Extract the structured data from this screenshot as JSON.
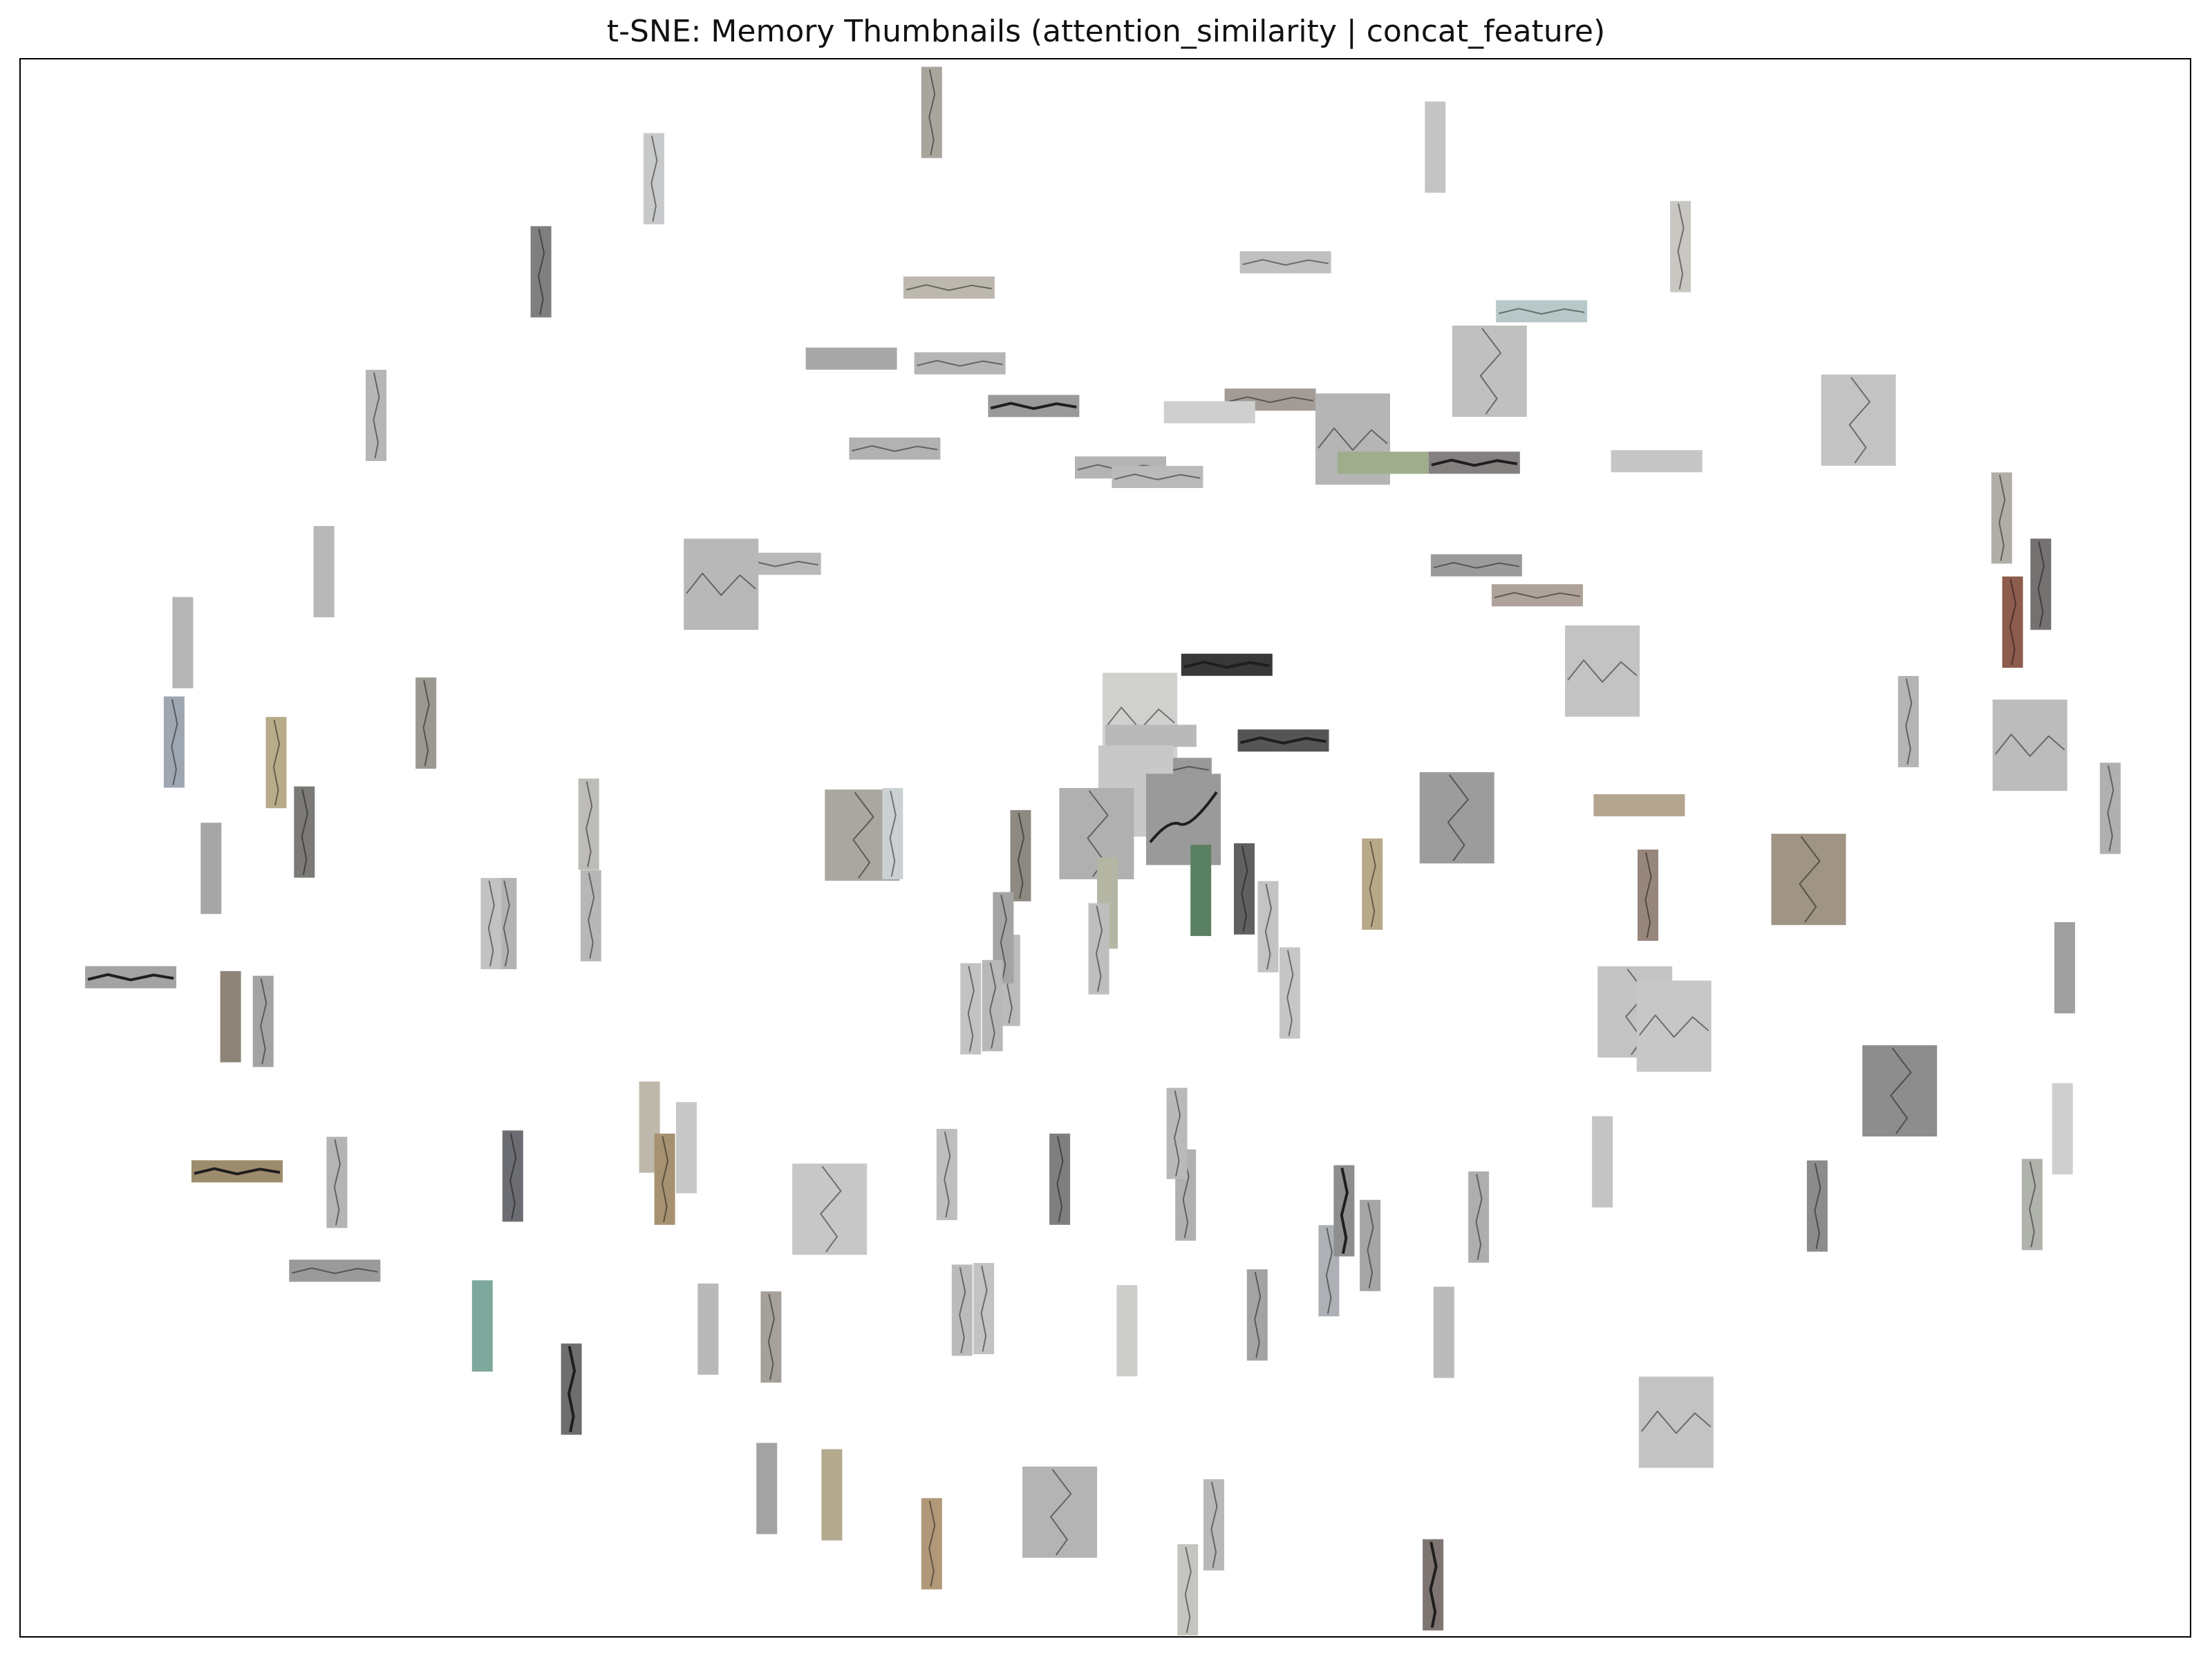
{
  "chart_data": {
    "type": "scatter",
    "title": "t-SNE: Memory Thumbnails (attention_similarity | concat_feature)",
    "xlabel": "",
    "ylabel": "",
    "axes_ticks": false,
    "grid": false,
    "legend": "none",
    "marker": "image-thumbnail",
    "xlim": [
      0,
      1000
    ],
    "ylim": [
      0,
      1000
    ],
    "points": [
      {
        "x": 420,
        "y": 966,
        "o": "v",
        "c": "#a9a59c",
        "crack": "v"
      },
      {
        "x": 292,
        "y": 924,
        "o": "v",
        "c": "#c8c9ca",
        "crack": "v"
      },
      {
        "x": 652,
        "y": 944,
        "o": "v",
        "c": "#c4c4c4",
        "crack": "none"
      },
      {
        "x": 240,
        "y": 865,
        "o": "v",
        "c": "#7f7f7f",
        "crack": "v"
      },
      {
        "x": 765,
        "y": 881,
        "o": "v",
        "c": "#c9c7c2",
        "crack": "v"
      },
      {
        "x": 583,
        "y": 871,
        "o": "h",
        "c": "#c0c0c0",
        "crack": "h"
      },
      {
        "x": 428,
        "y": 855,
        "o": "h",
        "c": "#bdb8ae",
        "crack": "h"
      },
      {
        "x": 677,
        "y": 802,
        "o": "b",
        "c": "#bfc0bf",
        "crack": "v"
      },
      {
        "x": 701,
        "y": 840,
        "o": "h",
        "c": "#b8c8c8",
        "crack": "h"
      },
      {
        "x": 164,
        "y": 774,
        "o": "v",
        "c": "#b6b6b6",
        "crack": "v"
      },
      {
        "x": 383,
        "y": 810,
        "o": "h",
        "c": "#a8a8a8",
        "crack": "none"
      },
      {
        "x": 433,
        "y": 807,
        "o": "h",
        "c": "#b5b5b5",
        "crack": "h"
      },
      {
        "x": 467,
        "y": 780,
        "o": "h",
        "c": "#9a9a9a",
        "crack": "h-dark"
      },
      {
        "x": 576,
        "y": 784,
        "o": "h",
        "c": "#a39b96",
        "crack": "h"
      },
      {
        "x": 548,
        "y": 776,
        "o": "h",
        "c": "#cfcfcf",
        "crack": "none"
      },
      {
        "x": 847,
        "y": 771,
        "o": "b",
        "c": "#c3c3c3",
        "crack": "v"
      },
      {
        "x": 403,
        "y": 753,
        "o": "h",
        "c": "#b2b2b2",
        "crack": "h"
      },
      {
        "x": 614,
        "y": 759,
        "o": "b",
        "c": "#b5b5b5",
        "crack": "h"
      },
      {
        "x": 628,
        "y": 744,
        "o": "h",
        "c": "#9fad8d",
        "crack": "none"
      },
      {
        "x": 670,
        "y": 744,
        "o": "h",
        "c": "#848080",
        "crack": "h-dark"
      },
      {
        "x": 754,
        "y": 745,
        "o": "h",
        "c": "#c6c6c6",
        "crack": "none"
      },
      {
        "x": 507,
        "y": 741,
        "o": "h",
        "c": "#b4b4b4",
        "crack": "h"
      },
      {
        "x": 524,
        "y": 735,
        "o": "h",
        "c": "#bababa",
        "crack": "h"
      },
      {
        "x": 140,
        "y": 675,
        "o": "v",
        "c": "#b8b8b8",
        "crack": "none"
      },
      {
        "x": 75,
        "y": 630,
        "o": "v",
        "c": "#b6b6b6",
        "crack": "none"
      },
      {
        "x": 913,
        "y": 709,
        "o": "v",
        "c": "#b1aea8",
        "crack": "v"
      },
      {
        "x": 931,
        "y": 667,
        "o": "v",
        "c": "#757170",
        "crack": "v"
      },
      {
        "x": 918,
        "y": 643,
        "o": "v",
        "c": "#8c5c4c",
        "crack": "v"
      },
      {
        "x": 348,
        "y": 680,
        "o": "h",
        "c": "#b9b9b9",
        "crack": "h"
      },
      {
        "x": 323,
        "y": 667,
        "o": "b",
        "c": "#b8b8b8",
        "crack": "h"
      },
      {
        "x": 671,
        "y": 679,
        "o": "h",
        "c": "#9b9b9b",
        "crack": "h"
      },
      {
        "x": 699,
        "y": 660,
        "o": "h",
        "c": "#aea29a",
        "crack": "h"
      },
      {
        "x": 556,
        "y": 616,
        "o": "h",
        "c": "#383838",
        "crack": "h-dark"
      },
      {
        "x": 729,
        "y": 612,
        "o": "b",
        "c": "#c3c3c3",
        "crack": "h"
      },
      {
        "x": 71,
        "y": 567,
        "o": "v",
        "c": "#9ea6b1",
        "crack": "v"
      },
      {
        "x": 118,
        "y": 554,
        "o": "v",
        "c": "#b8ab8a",
        "crack": "v"
      },
      {
        "x": 187,
        "y": 579,
        "o": "v",
        "c": "#9b9791",
        "crack": "v"
      },
      {
        "x": 870,
        "y": 580,
        "o": "v",
        "c": "#b4b4b4",
        "crack": "v"
      },
      {
        "x": 131,
        "y": 510,
        "o": "v",
        "c": "#7c7a77",
        "crack": "v"
      },
      {
        "x": 516,
        "y": 582,
        "o": "b",
        "c": "#d0d0ce",
        "crack": "h"
      },
      {
        "x": 528,
        "y": 550,
        "o": "h",
        "c": "#9a9898",
        "crack": "h"
      },
      {
        "x": 521,
        "y": 571,
        "o": "h",
        "c": "#b9b9b9",
        "crack": "none"
      },
      {
        "x": 514,
        "y": 536,
        "o": "b",
        "c": "#c8c8c8",
        "crack": "none"
      },
      {
        "x": 536,
        "y": 518,
        "o": "b",
        "c": "#9a9a9a",
        "crack": "h-curvy"
      },
      {
        "x": 496,
        "y": 509,
        "o": "b",
        "c": "#b0b0b0",
        "crack": "v"
      },
      {
        "x": 582,
        "y": 568,
        "o": "h",
        "c": "#565454",
        "crack": "h-dark"
      },
      {
        "x": 926,
        "y": 565,
        "o": "b",
        "c": "#bcbcbc",
        "crack": "h"
      },
      {
        "x": 963,
        "y": 525,
        "o": "v",
        "c": "#b0b0b0",
        "crack": "v"
      },
      {
        "x": 746,
        "y": 527,
        "o": "h",
        "c": "#b4a590",
        "crack": "none"
      },
      {
        "x": 662,
        "y": 519,
        "o": "b",
        "c": "#9c9c9c",
        "crack": "v"
      },
      {
        "x": 388,
        "y": 508,
        "o": "b",
        "c": "#a9a7a0",
        "crack": "v"
      },
      {
        "x": 402,
        "y": 509,
        "o": "v",
        "c": "#cbd0d2",
        "crack": "v"
      },
      {
        "x": 262,
        "y": 515,
        "o": "v",
        "c": "#bdbcb8",
        "crack": "v"
      },
      {
        "x": 461,
        "y": 495,
        "o": "v",
        "c": "#8e8a82",
        "crack": "v"
      },
      {
        "x": 824,
        "y": 480,
        "o": "b",
        "c": "#a09585",
        "crack": "v"
      },
      {
        "x": 750,
        "y": 470,
        "o": "v",
        "c": "#97867c",
        "crack": "v"
      },
      {
        "x": 88,
        "y": 487,
        "o": "v",
        "c": "#a6a6a6",
        "crack": "none"
      },
      {
        "x": 224,
        "y": 452,
        "o": "v",
        "c": "#b3b3b3",
        "crack": "v"
      },
      {
        "x": 263,
        "y": 457,
        "o": "v",
        "c": "#b7b7b7",
        "crack": "v"
      },
      {
        "x": 501,
        "y": 465,
        "o": "v",
        "c": "#b5b5a3",
        "crack": "none"
      },
      {
        "x": 544,
        "y": 473,
        "o": "v",
        "c": "#5a8064",
        "crack": "none"
      },
      {
        "x": 564,
        "y": 474,
        "o": "v",
        "c": "#606060",
        "crack": "v"
      },
      {
        "x": 623,
        "y": 477,
        "o": "v",
        "c": "#b7a888",
        "crack": "v"
      },
      {
        "x": 575,
        "y": 450,
        "o": "v",
        "c": "#c3c3c3",
        "crack": "v"
      },
      {
        "x": 497,
        "y": 436,
        "o": "v",
        "c": "#bebebe",
        "crack": "v"
      },
      {
        "x": 585,
        "y": 408,
        "o": "v",
        "c": "#c6c6c6",
        "crack": "v"
      },
      {
        "x": 942,
        "y": 424,
        "o": "v",
        "c": "#a0a0a0",
        "crack": "none"
      },
      {
        "x": 51,
        "y": 418,
        "o": "h",
        "c": "#a3a3a3",
        "crack": "h-dark"
      },
      {
        "x": 97,
        "y": 393,
        "o": "v",
        "c": "#8f8478",
        "crack": "none"
      },
      {
        "x": 112,
        "y": 390,
        "o": "v",
        "c": "#a3a3a3",
        "crack": "v"
      },
      {
        "x": 217,
        "y": 452,
        "o": "v",
        "c": "#c2c2c2",
        "crack": "v"
      },
      {
        "x": 456,
        "y": 416,
        "o": "v",
        "c": "#bbbbbb",
        "crack": "v"
      },
      {
        "x": 453,
        "y": 443,
        "o": "v",
        "c": "#a4a4a4",
        "crack": "v"
      },
      {
        "x": 438,
        "y": 398,
        "o": "v",
        "c": "#c3c3c3",
        "crack": "v"
      },
      {
        "x": 448,
        "y": 400,
        "o": "v",
        "c": "#b8b8b8",
        "crack": "v"
      },
      {
        "x": 744,
        "y": 396,
        "o": "b",
        "c": "#c3c3c3",
        "crack": "v"
      },
      {
        "x": 762,
        "y": 387,
        "o": "b",
        "c": "#c7c7c7",
        "crack": "h"
      },
      {
        "x": 866,
        "y": 346,
        "o": "b",
        "c": "#8d8d8d",
        "crack": "v"
      },
      {
        "x": 290,
        "y": 323,
        "o": "v",
        "c": "#bdb8a9",
        "crack": "none"
      },
      {
        "x": 297,
        "y": 290,
        "o": "v",
        "c": "#a69270",
        "crack": "v"
      },
      {
        "x": 307,
        "y": 310,
        "o": "v",
        "c": "#c8c8c8",
        "crack": "none"
      },
      {
        "x": 227,
        "y": 292,
        "o": "v",
        "c": "#6c6d72",
        "crack": "v"
      },
      {
        "x": 146,
        "y": 288,
        "o": "v",
        "c": "#b4b4b4",
        "crack": "v"
      },
      {
        "x": 100,
        "y": 295,
        "o": "h",
        "c": "#9d8c6c",
        "crack": "h-dark"
      },
      {
        "x": 479,
        "y": 290,
        "o": "v",
        "c": "#7f7f7f",
        "crack": "v"
      },
      {
        "x": 427,
        "y": 293,
        "o": "v",
        "c": "#bebebe",
        "crack": "v"
      },
      {
        "x": 537,
        "y": 280,
        "o": "v",
        "c": "#b0b0b0",
        "crack": "v"
      },
      {
        "x": 533,
        "y": 319,
        "o": "v",
        "c": "#b9b9b9",
        "crack": "v"
      },
      {
        "x": 622,
        "y": 248,
        "o": "v",
        "c": "#a5a5a5",
        "crack": "v"
      },
      {
        "x": 672,
        "y": 266,
        "o": "v",
        "c": "#aeaeae",
        "crack": "v"
      },
      {
        "x": 729,
        "y": 301,
        "o": "v",
        "c": "#c4c4c4",
        "crack": "none"
      },
      {
        "x": 828,
        "y": 273,
        "o": "v",
        "c": "#8c8c8c",
        "crack": "v"
      },
      {
        "x": 927,
        "y": 274,
        "o": "v",
        "c": "#b0b2ac",
        "crack": "v"
      },
      {
        "x": 941,
        "y": 322,
        "o": "v",
        "c": "#cfcfcf",
        "crack": "none"
      },
      {
        "x": 373,
        "y": 271,
        "o": "b",
        "c": "#c7c7c7",
        "crack": "v"
      },
      {
        "x": 145,
        "y": 232,
        "o": "h",
        "c": "#9a9a9a",
        "crack": "h"
      },
      {
        "x": 213,
        "y": 197,
        "o": "v",
        "c": "#7ea89c",
        "crack": "none"
      },
      {
        "x": 254,
        "y": 157,
        "o": "v",
        "c": "#6e6e6e",
        "crack": "v-dark"
      },
      {
        "x": 317,
        "y": 195,
        "o": "v",
        "c": "#b9b9b9",
        "crack": "none"
      },
      {
        "x": 346,
        "y": 190,
        "o": "v",
        "c": "#a5a09a",
        "crack": "v"
      },
      {
        "x": 434,
        "y": 207,
        "o": "v",
        "c": "#bbbbbb",
        "crack": "v"
      },
      {
        "x": 444,
        "y": 208,
        "o": "v",
        "c": "#c3c3c3",
        "crack": "v"
      },
      {
        "x": 510,
        "y": 194,
        "o": "v",
        "c": "#cdcdca",
        "crack": "none"
      },
      {
        "x": 570,
        "y": 204,
        "o": "v",
        "c": "#a3a3a3",
        "crack": "v"
      },
      {
        "x": 603,
        "y": 232,
        "o": "v",
        "c": "#adb0b4",
        "crack": "v"
      },
      {
        "x": 610,
        "y": 270,
        "o": "v",
        "c": "#8e8e8e",
        "crack": "v-dark"
      },
      {
        "x": 656,
        "y": 193,
        "o": "v",
        "c": "#bbbbbb",
        "crack": "none"
      },
      {
        "x": 763,
        "y": 136,
        "o": "b",
        "c": "#c3c3c3",
        "crack": "h"
      },
      {
        "x": 344,
        "y": 94,
        "o": "v",
        "c": "#a3a3a3",
        "crack": "none"
      },
      {
        "x": 374,
        "y": 90,
        "o": "v",
        "c": "#b4aa8e",
        "crack": "none"
      },
      {
        "x": 420,
        "y": 59,
        "o": "v",
        "c": "#b09878",
        "crack": "v"
      },
      {
        "x": 479,
        "y": 79,
        "o": "b",
        "c": "#b4b4b4",
        "crack": "v"
      },
      {
        "x": 550,
        "y": 71,
        "o": "v",
        "c": "#b8b8b8",
        "crack": "v"
      },
      {
        "x": 538,
        "y": 23,
        "o": "v",
        "c": "#c5c5bf",
        "crack": "v"
      },
      {
        "x": 651,
        "y": 33,
        "o": "v",
        "c": "#7e7572",
        "crack": "v-dark"
      }
    ]
  }
}
